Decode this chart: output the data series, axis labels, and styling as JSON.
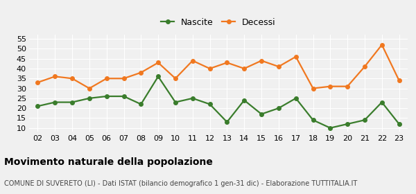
{
  "years": [
    "02",
    "03",
    "04",
    "05",
    "06",
    "07",
    "08",
    "09",
    "10",
    "11",
    "12",
    "13",
    "14",
    "15",
    "16",
    "17",
    "18",
    "19",
    "20",
    "21",
    "22",
    "23"
  ],
  "nascite": [
    21,
    23,
    23,
    25,
    26,
    26,
    22,
    36,
    23,
    25,
    22,
    13,
    24,
    17,
    20,
    25,
    14,
    10,
    12,
    14,
    23,
    12
  ],
  "decessi": [
    33,
    36,
    35,
    30,
    35,
    35,
    38,
    43,
    35,
    44,
    40,
    43,
    40,
    44,
    41,
    46,
    30,
    31,
    31,
    41,
    52,
    34
  ],
  "nascite_color": "#3a7d2c",
  "decessi_color": "#f07820",
  "ylim_min": 8,
  "ylim_max": 57,
  "yticks": [
    10,
    15,
    20,
    25,
    30,
    35,
    40,
    45,
    50,
    55
  ],
  "title": "Movimento naturale della popolazione",
  "subtitle": "COMUNE DI SUVERETO (LI) - Dati ISTAT (bilancio demografico 1 gen-31 dic) - Elaborazione TUTTITALIA.IT",
  "legend_nascite": "Nascite",
  "legend_decessi": "Decessi",
  "background_color": "#f0f0f0",
  "grid_color": "#ffffff",
  "title_fontsize": 10,
  "subtitle_fontsize": 7,
  "tick_fontsize": 8,
  "legend_fontsize": 9,
  "marker_size": 4,
  "line_width": 1.6
}
